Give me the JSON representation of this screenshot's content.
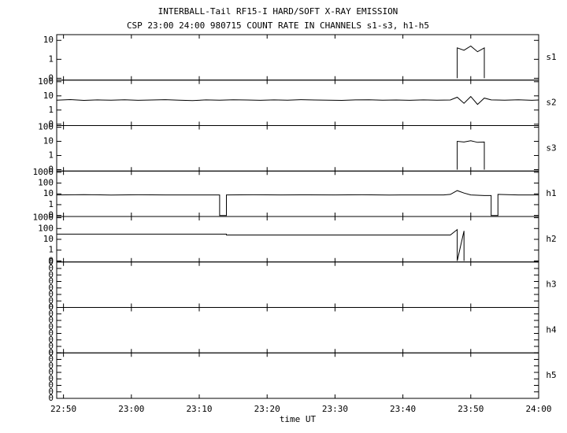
{
  "chart_data": [
    {
      "type": "line",
      "title": "INTERBALL-Tail RF15-I HARD/SOFT X-RAY EMISSION",
      "subtitle": "CSP 23:00 24:00 980715  COUNT RATE IN CHANNELS s1-s3, h1-h5",
      "log": true,
      "xlim": [
        "22:49",
        "24:00"
      ],
      "ylim": [
        0.08,
        20
      ],
      "yticks": [
        {
          "value": 0.1,
          "label": "0"
        },
        1,
        10
      ],
      "x": [
        "23:48",
        "23:48",
        "23:49",
        "23:50",
        "23:51",
        "23:52",
        "23:52"
      ],
      "series": [
        {
          "name": "s1",
          "color": "#000000",
          "values": [
            0.1,
            4,
            3,
            5,
            2.5,
            4,
            0.1
          ]
        }
      ]
    },
    {
      "type": "line",
      "log": true,
      "xlim": [
        "22:49",
        "24:00"
      ],
      "ylim": [
        0.08,
        130
      ],
      "yticks": [
        {
          "value": 0.1,
          "label": "0"
        },
        1,
        10,
        100
      ],
      "x": [
        "22:49",
        "22:51",
        "22:53",
        "22:55",
        "22:57",
        "22:59",
        "23:01",
        "23:03",
        "23:05",
        "23:07",
        "23:09",
        "23:11",
        "23:13",
        "23:15",
        "23:17",
        "23:19",
        "23:21",
        "23:23",
        "23:25",
        "23:27",
        "23:29",
        "23:31",
        "23:33",
        "23:35",
        "23:37",
        "23:39",
        "23:41",
        "23:43",
        "23:45",
        "23:47",
        "23:48",
        "23:49",
        "23:50",
        "23:51",
        "23:52",
        "23:53",
        "23:55",
        "23:57",
        "23:59",
        "24:00"
      ],
      "series": [
        {
          "name": "s2",
          "color": "#000000",
          "values": [
            5,
            5.5,
            4.8,
            5.2,
            5,
            5.3,
            4.9,
            5.1,
            5.4,
            5,
            4.7,
            5.2,
            5,
            5.3,
            5.1,
            4.9,
            5.2,
            5,
            5.4,
            5.1,
            5,
            4.8,
            5.2,
            5.3,
            5,
            5.1,
            4.9,
            5.2,
            5,
            5.1,
            8,
            3,
            9,
            2.5,
            7,
            5.2,
            5,
            5.3,
            4.9,
            5.1
          ]
        }
      ]
    },
    {
      "type": "line",
      "log": true,
      "xlim": [
        "22:49",
        "24:00"
      ],
      "ylim": [
        0.08,
        130
      ],
      "yticks": [
        {
          "value": 0.1,
          "label": "0"
        },
        1,
        10,
        100
      ],
      "x": [
        "23:48",
        "23:48",
        "23:49",
        "23:50",
        "23:51",
        "23:52",
        "23:52"
      ],
      "series": [
        {
          "name": "s3",
          "color": "#000000",
          "values": [
            0.1,
            10,
            9,
            11,
            8.5,
            9,
            0.1
          ]
        }
      ]
    },
    {
      "type": "line",
      "log": true,
      "xlim": [
        "22:49",
        "24:00"
      ],
      "ylim": [
        0.08,
        1300
      ],
      "yticks": [
        {
          "value": 0.1,
          "label": "0"
        },
        1,
        10,
        100,
        1000
      ],
      "x": [
        "22:49",
        "22:53",
        "22:57",
        "23:01",
        "23:05",
        "23:09",
        "23:13",
        "23:13",
        "23:14",
        "23:14",
        "23:18",
        "23:22",
        "23:26",
        "23:30",
        "23:34",
        "23:38",
        "23:42",
        "23:46",
        "23:47",
        "23:48",
        "23:49",
        "23:50",
        "23:52",
        "23:53",
        "23:53",
        "23:54",
        "23:54",
        "23:57",
        "24:00"
      ],
      "series": [
        {
          "name": "h1",
          "color": "#000000",
          "values": [
            8,
            8.5,
            7.8,
            8.2,
            8,
            7.9,
            8,
            0.1,
            0.1,
            8,
            8.3,
            7.9,
            8.1,
            8,
            8.2,
            7.8,
            8,
            8,
            9,
            20,
            12,
            8,
            7,
            7,
            0.1,
            0.1,
            9,
            8,
            8
          ]
        }
      ]
    },
    {
      "type": "line",
      "log": true,
      "xlim": [
        "22:49",
        "24:00"
      ],
      "ylim": [
        0.08,
        1300
      ],
      "yticks": [
        {
          "value": 0.1,
          "label": "0"
        },
        1,
        10,
        100,
        1000
      ],
      "x": [
        "22:49",
        "23:14",
        "23:14",
        "23:47",
        "23:48",
        "23:48",
        "23:49",
        "23:49"
      ],
      "series": [
        {
          "name": "h2",
          "color": "#000000",
          "values": [
            30,
            30,
            25,
            25,
            80,
            0.1,
            60,
            0.1
          ]
        }
      ]
    },
    {
      "type": "line",
      "log": false,
      "xlim": [
        "22:49",
        "24:00"
      ],
      "ylim": [
        0,
        0.7
      ],
      "yticks": [
        {
          "value": 0,
          "label": "0"
        },
        {
          "value": 0.1,
          "label": "0"
        },
        {
          "value": 0.2,
          "label": "0"
        },
        {
          "value": 0.3,
          "label": "0"
        },
        {
          "value": 0.4,
          "label": "0"
        },
        {
          "value": 0.5,
          "label": "0"
        },
        {
          "value": 0.6,
          "label": "0"
        },
        {
          "value": 0.7,
          "label": "0"
        }
      ],
      "x": [],
      "series": [
        {
          "name": "h3",
          "color": "#000000",
          "values": []
        }
      ]
    },
    {
      "type": "line",
      "log": false,
      "xlim": [
        "22:49",
        "24:00"
      ],
      "ylim": [
        0,
        0.7
      ],
      "yticks": [
        {
          "value": 0,
          "label": "0"
        },
        {
          "value": 0.1,
          "label": "0"
        },
        {
          "value": 0.2,
          "label": "0"
        },
        {
          "value": 0.3,
          "label": "0"
        },
        {
          "value": 0.4,
          "label": "0"
        },
        {
          "value": 0.5,
          "label": "0"
        },
        {
          "value": 0.6,
          "label": "0"
        },
        {
          "value": 0.7,
          "label": "0"
        }
      ],
      "x": [],
      "series": [
        {
          "name": "h4",
          "color": "#000000",
          "values": []
        }
      ]
    },
    {
      "type": "line",
      "log": false,
      "xlim": [
        "22:49",
        "24:00"
      ],
      "ylim": [
        0,
        0.7
      ],
      "yticks": [
        {
          "value": 0,
          "label": "0"
        },
        {
          "value": 0.1,
          "label": "0"
        },
        {
          "value": 0.2,
          "label": "0"
        },
        {
          "value": 0.3,
          "label": "0"
        },
        {
          "value": 0.4,
          "label": "0"
        },
        {
          "value": 0.5,
          "label": "0"
        },
        {
          "value": 0.6,
          "label": "0"
        },
        {
          "value": 0.7,
          "label": "0"
        }
      ],
      "x": [],
      "series": [
        {
          "name": "h5",
          "color": "#000000",
          "values": []
        }
      ],
      "xlabel": "time UT",
      "xticks": [
        "22:50",
        "23:00",
        "23:10",
        "23:20",
        "23:30",
        "23:40",
        "23:50",
        "24:00"
      ]
    }
  ]
}
